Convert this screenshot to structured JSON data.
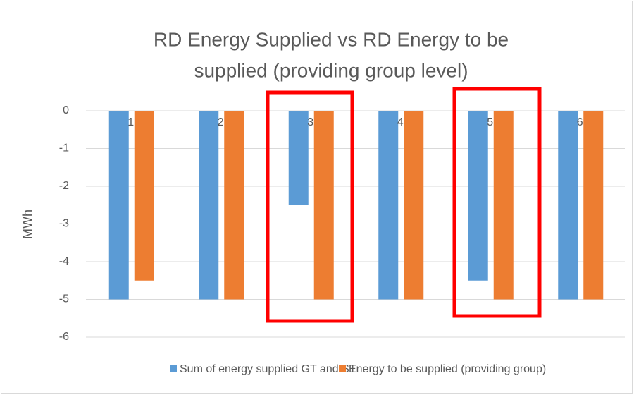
{
  "chart_data": {
    "type": "bar",
    "title": [
      "RD Energy Supplied vs RD Energy to be",
      "supplied (providing group level)"
    ],
    "y_label": "MWh",
    "categories": [
      "1",
      "2",
      "3",
      "4",
      "5",
      "6"
    ],
    "series": [
      {
        "name": "Sum of energy supplied GT and ST",
        "color": "#5b9bd5",
        "values": [
          -5,
          -5,
          -2.5,
          -5,
          -4.5,
          -5
        ]
      },
      {
        "name": "Energy to be supplied (providing group)",
        "color": "#ed7d31",
        "values": [
          -4.5,
          -5,
          -5,
          -5,
          -5,
          -5
        ]
      }
    ],
    "ylim": [
      -6,
      0
    ],
    "yticks": [
      -6,
      -5,
      -4,
      -3,
      -2,
      -1,
      0
    ],
    "grid": true,
    "legend": "bottom"
  }
}
